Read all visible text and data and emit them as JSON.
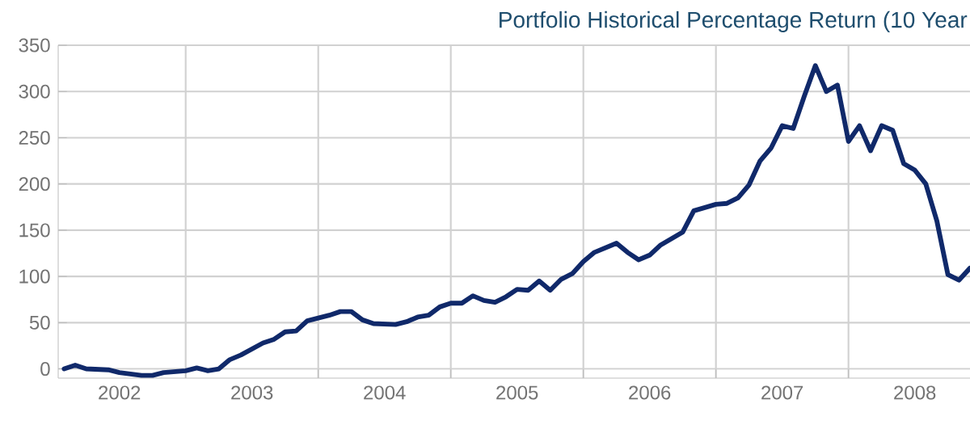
{
  "chart_data": {
    "type": "line",
    "title": "Portfolio Historical Percentage Return (10 Year",
    "series": [
      {
        "color": "#10296a",
        "x": [
          "2002-02",
          "2002-03",
          "2002-04",
          "2002-06",
          "2002-07",
          "2002-09",
          "2002-10",
          "2002-11",
          "2003-01",
          "2003-02",
          "2003-03",
          "2003-04",
          "2003-05",
          "2003-06",
          "2003-08",
          "2003-09",
          "2003-10",
          "2003-11",
          "2003-12",
          "2004-02",
          "2004-03",
          "2004-04",
          "2004-05",
          "2004-06",
          "2004-08",
          "2004-09",
          "2004-10",
          "2004-11",
          "2004-12",
          "2005-01",
          "2005-02",
          "2005-03",
          "2005-04",
          "2005-05",
          "2005-06",
          "2005-07",
          "2005-08",
          "2005-09",
          "2005-10",
          "2005-11",
          "2005-12",
          "2006-01",
          "2006-02",
          "2006-04",
          "2006-05",
          "2006-06",
          "2006-07",
          "2006-08",
          "2006-10",
          "2006-11",
          "2007-01",
          "2007-02",
          "2007-03",
          "2007-04",
          "2007-05",
          "2007-06",
          "2007-07",
          "2007-08",
          "2007-09",
          "2007-10",
          "2007-11",
          "2007-12",
          "2008-01",
          "2008-02",
          "2008-03",
          "2008-04",
          "2008-05",
          "2008-06",
          "2008-07",
          "2008-08",
          "2008-09",
          "2008-10",
          "2008-11",
          "2008-12"
        ],
        "values": [
          0,
          4,
          0,
          -1,
          -4,
          -7,
          -7,
          -4,
          -2,
          1,
          -2,
          0,
          10,
          15,
          28,
          32,
          40,
          41,
          52,
          58,
          62,
          62,
          53,
          49,
          48,
          51,
          56,
          58,
          67,
          71,
          71,
          79,
          74,
          72,
          78,
          86,
          85,
          95,
          85,
          97,
          103,
          116,
          126,
          136,
          126,
          118,
          123,
          134,
          148,
          171,
          178,
          179,
          185,
          199,
          225,
          239,
          263,
          260,
          295,
          328,
          300,
          307,
          246,
          263,
          236,
          263,
          258,
          222,
          215,
          200,
          160,
          102,
          96,
          109
        ]
      }
    ],
    "xlim": [
      "2002-01-15",
      "2008-12"
    ],
    "xticks": [
      {
        "value": "2002-07",
        "label": "2002"
      },
      {
        "value": "2003-07",
        "label": "2003"
      },
      {
        "value": "2004-07",
        "label": "2004"
      },
      {
        "value": "2005-07",
        "label": "2005"
      },
      {
        "value": "2006-07",
        "label": "2006"
      },
      {
        "value": "2007-07",
        "label": "2007"
      },
      {
        "value": "2008-07",
        "label": "2008"
      },
      {
        "value": "2003-01",
        "label": null
      },
      {
        "value": "2004-01",
        "label": null
      },
      {
        "value": "2005-01",
        "label": null
      },
      {
        "value": "2006-01",
        "label": null
      },
      {
        "value": "2007-01",
        "label": null
      },
      {
        "value": "2008-01",
        "label": null
      }
    ],
    "ylim": [
      -10,
      350
    ],
    "yticks": [
      0,
      50,
      100,
      150,
      200,
      250,
      300,
      350
    ],
    "grid": true,
    "line_style": "solid"
  }
}
